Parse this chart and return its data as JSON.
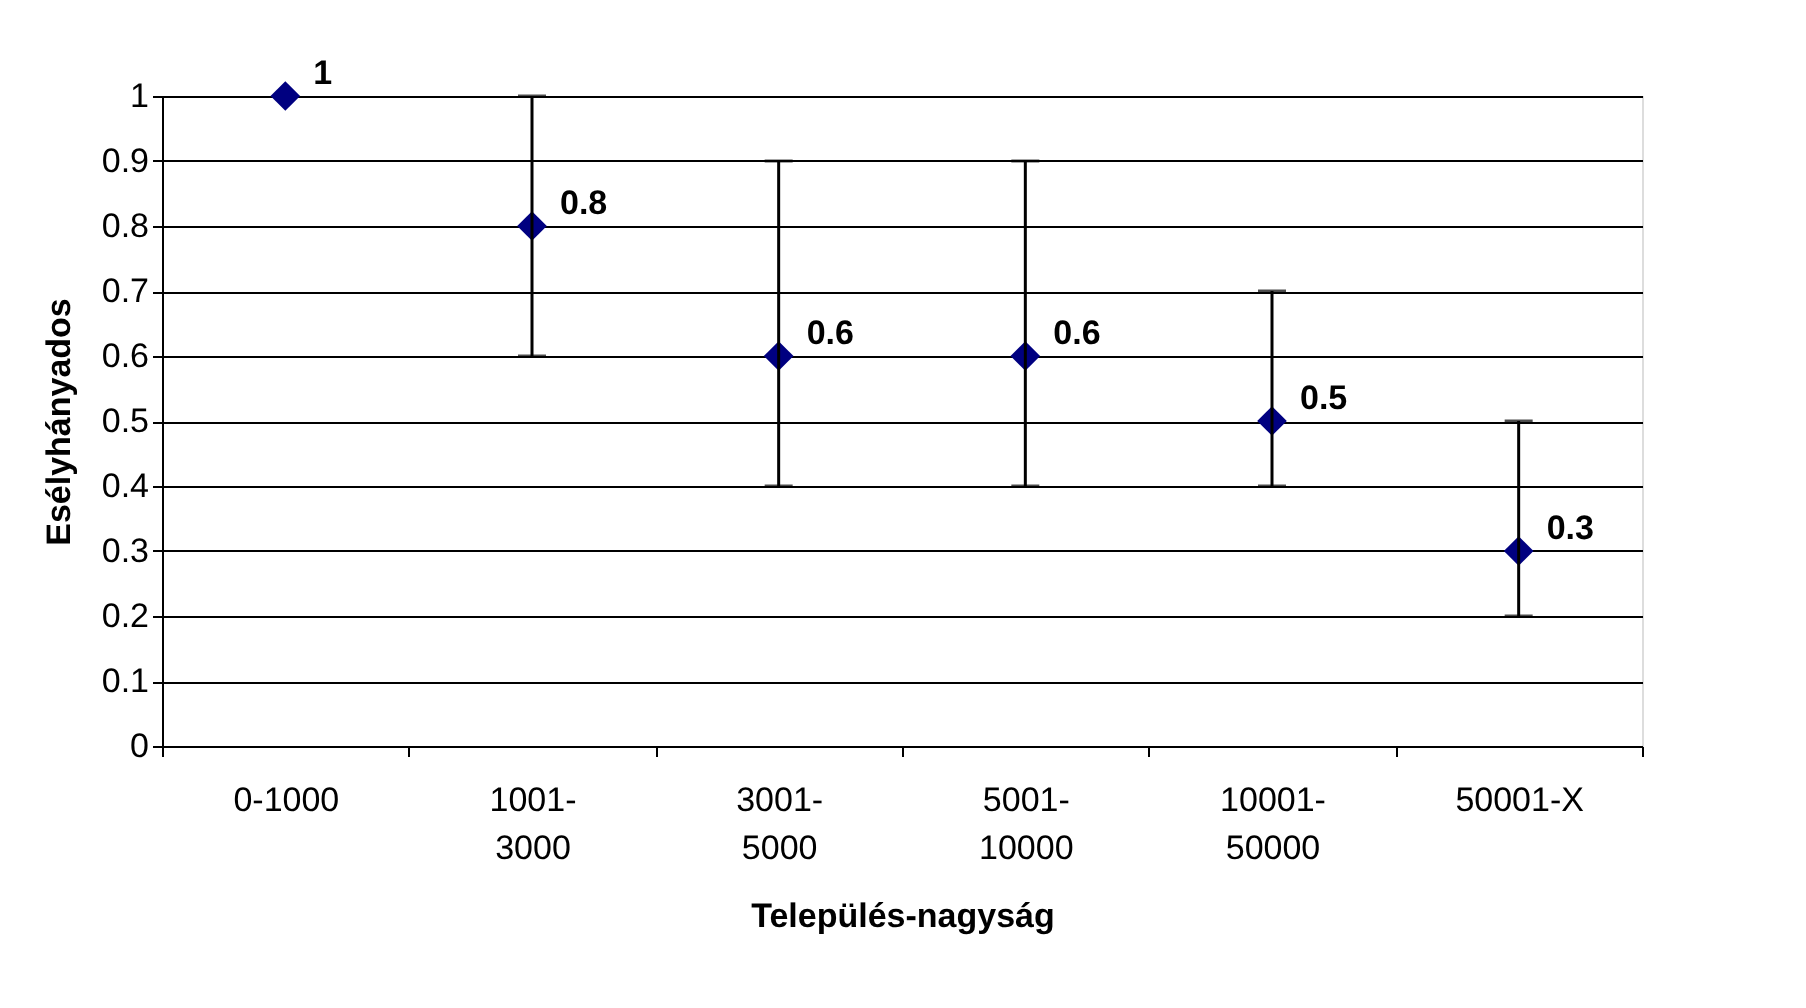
{
  "chart_data": {
    "type": "scatter",
    "categories": [
      "0-1000",
      "1001-3000",
      "3001-5000",
      "5001-10000",
      "10001-50000",
      "50001-X"
    ],
    "series": [
      {
        "color": "#000080",
        "values": [
          1,
          0.8,
          0.6,
          0.6,
          0.5,
          0.3
        ],
        "errors": [
          null,
          [
            0.6,
            1.0
          ],
          [
            0.4,
            0.9
          ],
          [
            0.4,
            0.9
          ],
          [
            0.4,
            0.7
          ],
          [
            0.2,
            0.5
          ]
        ]
      }
    ],
    "ylim": [
      0,
      1
    ],
    "yticks": [
      0,
      0.1,
      0.2,
      0.3,
      0.4,
      0.5,
      0.6,
      0.7,
      0.8,
      0.9,
      1
    ],
    "xlabel": "Település-nagyság",
    "ylabel": "Esélyhányados",
    "grid": "y",
    "marker": "diamond",
    "data_labels": true,
    "legend": false
  }
}
